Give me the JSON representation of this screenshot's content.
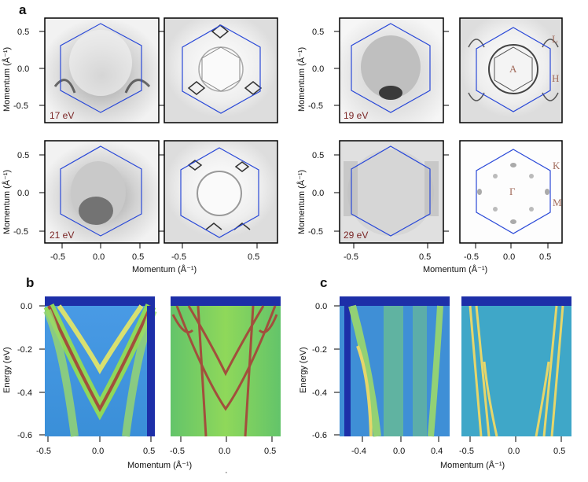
{
  "panel_labels": {
    "a": "a",
    "b": "b",
    "c": "c"
  },
  "energies": {
    "e17": "17 eV",
    "e19": "19 eV",
    "e21": "21 eV",
    "e29": "29 eV"
  },
  "symmetry_points": {
    "L": "L",
    "A": "A",
    "H": "H",
    "K": "K",
    "Gamma": "Γ",
    "M": "M"
  },
  "axes": {
    "momentum_y_label": "Momentum (Å⁻¹)",
    "momentum_x_label": "Momentum (Å⁻¹)",
    "energy_label": "Energy (eV)",
    "stray_mark": "·"
  },
  "ticks": {
    "a_y": [
      "0.5",
      "0.0",
      "-0.5"
    ],
    "a_x": [
      "-0.5",
      "0.0",
      "0.5"
    ],
    "a_x_short": [
      "-0.5",
      "0.5"
    ],
    "energy": [
      "0.0",
      "-0.2",
      "-0.4",
      "-0.6"
    ],
    "b_left_x": [
      "-0.5",
      "0.0",
      "0.5"
    ],
    "b_right_x": [
      "-0.5",
      "0.0",
      "0.5"
    ],
    "c_left_x": [
      "-0.4",
      "0.0",
      "0.4"
    ],
    "c_right_x": [
      "-0.5",
      "0.0",
      "0.5"
    ]
  },
  "colors": {
    "bz": "#2a49d8",
    "arpes_base": "#3f9be0",
    "arpes_green": "#7ed05a",
    "arpes_red": "#a24f3c",
    "arpes_dark": "#1d2fa8"
  }
}
